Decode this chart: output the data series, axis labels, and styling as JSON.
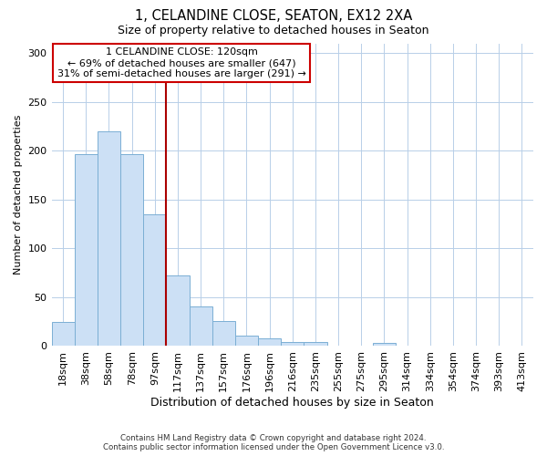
{
  "title": "1, CELANDINE CLOSE, SEATON, EX12 2XA",
  "subtitle": "Size of property relative to detached houses in Seaton",
  "xlabel": "Distribution of detached houses by size in Seaton",
  "ylabel": "Number of detached properties",
  "bar_labels": [
    "18sqm",
    "38sqm",
    "58sqm",
    "78sqm",
    "97sqm",
    "117sqm",
    "137sqm",
    "157sqm",
    "176sqm",
    "196sqm",
    "216sqm",
    "235sqm",
    "255sqm",
    "275sqm",
    "295sqm",
    "314sqm",
    "334sqm",
    "354sqm",
    "374sqm",
    "393sqm",
    "413sqm"
  ],
  "bar_values": [
    24,
    196,
    220,
    196,
    135,
    72,
    40,
    25,
    10,
    8,
    4,
    4,
    0,
    0,
    3,
    0,
    0,
    0,
    0,
    0,
    0
  ],
  "bar_color": "#cce0f5",
  "bar_edge_color": "#7bafd4",
  "vline_color": "#aa0000",
  "vline_index": 5,
  "ylim": [
    0,
    310
  ],
  "yticks": [
    0,
    50,
    100,
    150,
    200,
    250,
    300
  ],
  "annotation_title": "1 CELANDINE CLOSE: 120sqm",
  "annotation_line1": "← 69% of detached houses are smaller (647)",
  "annotation_line2": "31% of semi-detached houses are larger (291) →",
  "annotation_box_color": "#ffffff",
  "annotation_box_edge": "#cc0000",
  "footer_line1": "Contains HM Land Registry data © Crown copyright and database right 2024.",
  "footer_line2": "Contains public sector information licensed under the Open Government Licence v3.0.",
  "background_color": "#ffffff",
  "grid_color": "#b8cfe8"
}
